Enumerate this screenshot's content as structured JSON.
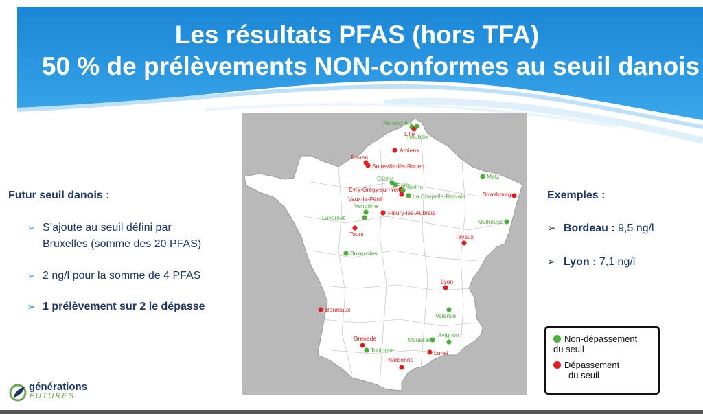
{
  "header": {
    "title_line1": "Les résultats PFAS (hors TFA)",
    "title_line2": "50 % de prélèvements NON-conformes au seuil danois"
  },
  "left": {
    "heading": "Futur seuil danois :",
    "bullets": [
      {
        "line1": "S’ajoute au seuil défini par",
        "line2": "Bruxelles (somme des 20 PFAS)"
      },
      {
        "text": "2 ng/l pour la somme de 4 PFAS"
      },
      {
        "text": "1 prélèvement sur 2 le dépasse"
      }
    ]
  },
  "right": {
    "heading": "Exemples :",
    "examples": [
      {
        "city": "Bordeau :",
        "value": "9,5 ng/l"
      },
      {
        "city": "Lyon :",
        "value": "7,1 ng/l"
      }
    ]
  },
  "legend": {
    "green_line1": "Non-dépassement",
    "green_line2": "du seuil",
    "red_line1": "Dépassement",
    "red_line2": "du seuil"
  },
  "logo": {
    "line1": "générations",
    "line2": "FUTURES"
  },
  "map": {
    "colors": {
      "ok": "#4caf3d",
      "exceed": "#e02020"
    },
    "cities": [
      {
        "name": "Pérenchies",
        "status": "ok"
      },
      {
        "name": "Lille",
        "status": "exceed"
      },
      {
        "name": "Roubaix",
        "status": "ok"
      },
      {
        "name": "Amiens",
        "status": "exceed"
      },
      {
        "name": "Rouen",
        "status": "exceed"
      },
      {
        "name": "Sotteville-lès-Rouen",
        "status": "exceed"
      },
      {
        "name": "Clichy",
        "status": "ok"
      },
      {
        "name": "Paris",
        "status": "ok"
      },
      {
        "name": "Évry-Grégy-sur-Yerre",
        "status": "exceed"
      },
      {
        "name": "Melun",
        "status": "ok"
      },
      {
        "name": "Vaux-le-Pénil",
        "status": "exceed"
      },
      {
        "name": "La Chapelle-Rablais",
        "status": "ok"
      },
      {
        "name": "Metz",
        "status": "ok"
      },
      {
        "name": "Strasbourg",
        "status": "exceed"
      },
      {
        "name": "Vendôme",
        "status": "ok"
      },
      {
        "name": "Lavernat",
        "status": "ok"
      },
      {
        "name": "Fleury-les-Aubrais",
        "status": "exceed"
      },
      {
        "name": "Mulhouse",
        "status": "ok"
      },
      {
        "name": "Tours",
        "status": "exceed"
      },
      {
        "name": "Tavaux",
        "status": "exceed"
      },
      {
        "name": "Buxerolles",
        "status": "ok"
      },
      {
        "name": "Lyon",
        "status": "exceed"
      },
      {
        "name": "Bordeaux",
        "status": "exceed"
      },
      {
        "name": "Valence",
        "status": "ok"
      },
      {
        "name": "Avignon",
        "status": "ok"
      },
      {
        "name": "Grenade",
        "status": "exceed"
      },
      {
        "name": "Moussac",
        "status": "ok"
      },
      {
        "name": "Toulouse",
        "status": "ok"
      },
      {
        "name": "Lunel",
        "status": "exceed"
      },
      {
        "name": "Narbonne",
        "status": "exceed"
      }
    ]
  }
}
